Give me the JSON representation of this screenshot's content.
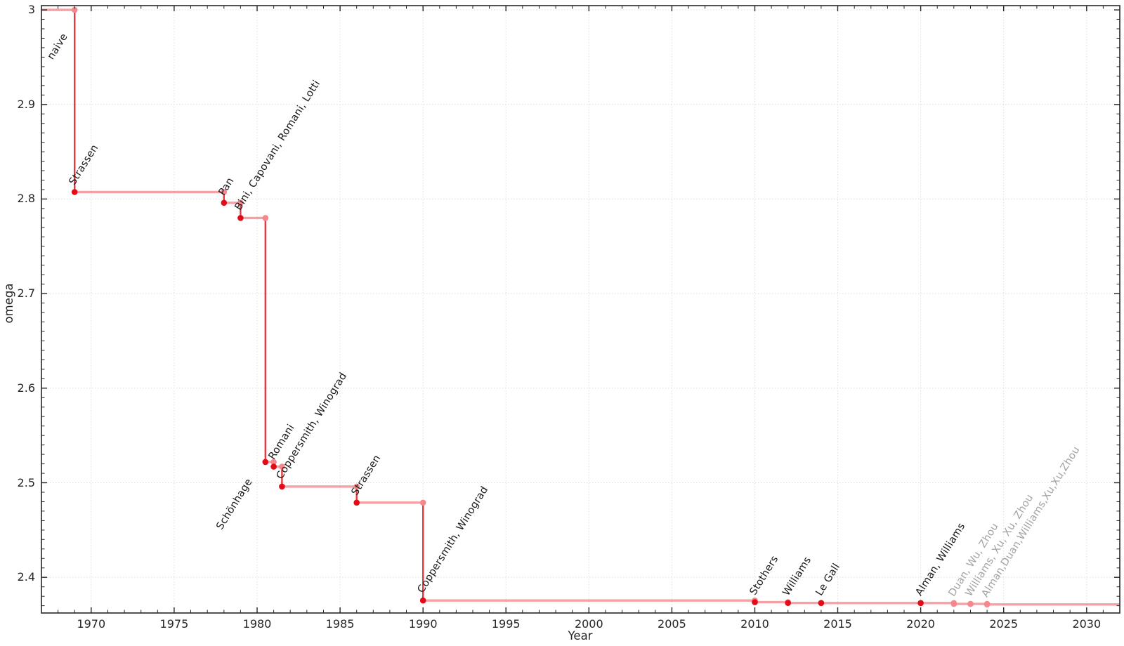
{
  "chart_data": {
    "type": "line",
    "step_style": "step function: horizontal plateaus with vertical drops at each improvement",
    "title": "",
    "xlabel": "Year",
    "ylabel": "omega",
    "x_range": [
      1967.0,
      2032.0
    ],
    "y_range": [
      2.3623,
      3.0045
    ],
    "x_major_ticks": [
      1970,
      1975,
      1980,
      1985,
      1990,
      1995,
      2000,
      2005,
      2010,
      2015,
      2020,
      2025,
      2030
    ],
    "x_minor_step": 1,
    "y_major_ticks": [
      3.0,
      2.9,
      2.8,
      2.7,
      2.6,
      2.5,
      2.4
    ],
    "y_major_tick_labels": [
      "3",
      "2.9",
      "2.8",
      "2.7",
      "2.6",
      "2.5",
      "2.4"
    ],
    "y_minor_step": 0.01,
    "grid": "dotted gridlines at major ticks, box frame with inward ticks on all four sides",
    "legend": "none",
    "start": {
      "omega": 3.0,
      "label": "naive"
    },
    "events": [
      {
        "year": 1969,
        "omega": 2.8074,
        "label": "Strassen",
        "established": true
      },
      {
        "year": 1978,
        "omega": 2.796,
        "label": "Pan",
        "established": true
      },
      {
        "year": 1979,
        "omega": 2.78,
        "label": "Bini, Capovani, Romani, Lotti",
        "established": true
      },
      {
        "year": 1980.5,
        "omega": 2.522,
        "label": "Schönhage",
        "established": true,
        "label_placement": "below-left"
      },
      {
        "year": 1981,
        "omega": 2.517,
        "label": "Romani",
        "established": true
      },
      {
        "year": 1981.5,
        "omega": 2.496,
        "label": "Coppersmith, Winograd",
        "established": true
      },
      {
        "year": 1986,
        "omega": 2.479,
        "label": "Strassen",
        "established": true
      },
      {
        "year": 1990,
        "omega": 2.3755,
        "label": "Coppersmith, Winograd",
        "established": true
      },
      {
        "year": 2010,
        "omega": 2.3737,
        "label": "Stothers",
        "established": true
      },
      {
        "year": 2012,
        "omega": 2.3729,
        "label": "Williams",
        "established": true
      },
      {
        "year": 2014,
        "omega": 2.3728639,
        "label": "Le Gall",
        "established": true
      },
      {
        "year": 2020,
        "omega": 2.3728596,
        "label": "Alman, Williams",
        "established": true
      },
      {
        "year": 2022,
        "omega": 2.37188,
        "label": "Duan, Wu, Zhou",
        "established": false
      },
      {
        "year": 2023,
        "omega": 2.371866,
        "label": "Williams, Xu, Xu, Zhou",
        "established": false
      },
      {
        "year": 2024,
        "omega": 2.371339,
        "label": "Alman,Duan,Williams,Xu,Xu,Zhou",
        "established": false
      }
    ],
    "colors": {
      "line_soft": "rgba(233,32,40,0.42)",
      "line_strong": "#e8373e",
      "dot_strong": "#e30b16",
      "dot_soft": "#f5888e",
      "label_dark": "#1a1a1a",
      "label_gray": "#a3a3a3",
      "grid": "#dedede",
      "frame": "#262626",
      "tick": "#262626"
    }
  }
}
